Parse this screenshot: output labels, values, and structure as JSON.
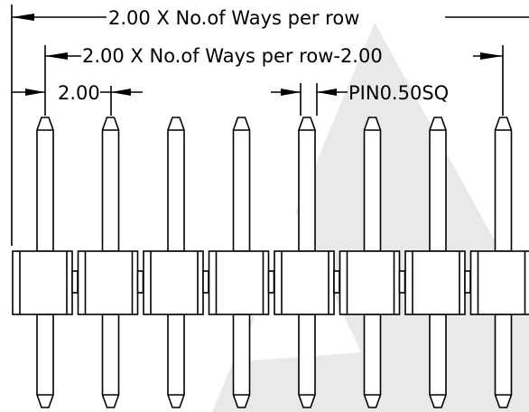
{
  "diagram": {
    "dimensions": {
      "total_length": "2.00 X No.of Ways per row",
      "end_pin_span": "2.00 X No.of Ways per row-2.00",
      "pitch": "2.00",
      "pin_size": "PIN0.50SQ"
    },
    "pins_shown": 8,
    "watermark_color": "#e9e9e9"
  }
}
